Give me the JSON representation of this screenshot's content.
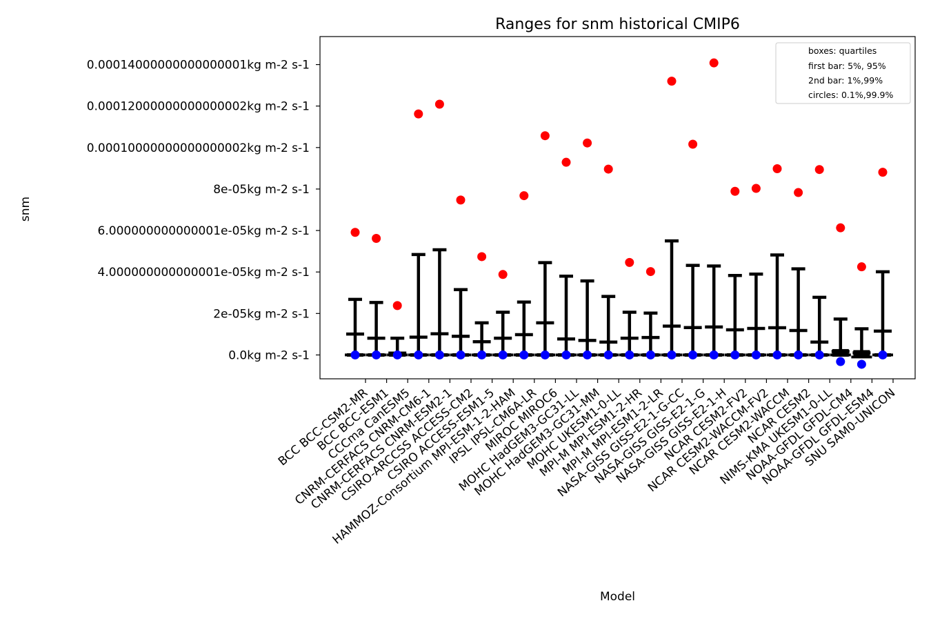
{
  "chart_data": {
    "type": "box",
    "title": "Ranges for snm historical CMIP6",
    "xlabel": "Model",
    "ylabel": "snm",
    "ylim": [
      -1.15e-05,
      0.0001535
    ],
    "y_ticks": [
      0.0,
      2e-05,
      4e-05,
      6e-05,
      8e-05,
      0.0001,
      0.00012,
      0.00014
    ],
    "y_tick_labels": [
      "0.0kg m-2 s-1",
      "2e-05kg m-2 s-1",
      "4.000000000000001e-05kg m-2 s-1",
      "6.000000000000001e-05kg m-2 s-1",
      "8e-05kg m-2 s-1",
      "0.00010000000000000002kg m-2 s-1",
      "0.00012000000000000002kg m-2 s-1",
      "0.00014000000000000001kg m-2 s-1"
    ],
    "legend": {
      "position": "top-right",
      "entries": [
        "boxes: quartiles",
        "first bar: 5%, 95%",
        "2nd bar: 1%,99%",
        "circles: 0.1%,99.9%"
      ]
    },
    "colors": {
      "high_circle": "#ff0000",
      "low_circle": "#0000ff",
      "bars": "#000000"
    },
    "categories": [
      "BCC BCC-CSM2-MR",
      "BCC BCC-ESM1",
      "CCCma CanESM5",
      "CNRM-CERFACS CNRM-CM6-1",
      "CNRM-CERFACS CNRM-ESM2-1",
      "CSIRO-ARCCSS ACCESS-CM2",
      "CSIRO ACCESS-ESM1-5",
      "HAMMOZ-Consortium MPI-ESM-1-2-HAM",
      "IPSL IPSL-CM6A-LR",
      "MIROC MIROC6",
      "MOHC HadGEM3-GC31-LL",
      "MOHC HadGEM3-GC31-MM",
      "MOHC UKESM1-0-LL",
      "MPI-M MPI-ESM1-2-HR",
      "MPI-M MPI-ESM1-2-LR",
      "NASA-GISS GISS-E2-1-G-CC",
      "NASA-GISS GISS-E2-1-G",
      "NASA-GISS GISS-E2-1-H",
      "NCAR CESM2-FV2",
      "NCAR CESM2-WACCM-FV2",
      "NCAR CESM2-WACCM",
      "NCAR CESM2",
      "NIMS-KMA UKESM1-0-LL",
      "NOAA-GFDL GFDL-CM4",
      "NOAA-GFDL GFDL-ESM4",
      "SNU SAM0-UNICON"
    ],
    "series": [
      {
        "p01": 0,
        "p1": 0,
        "p5": 0,
        "q1": 0,
        "q3": 0,
        "p95": 1.01e-05,
        "p99": 2.68e-05,
        "p999": 5.91e-05
      },
      {
        "p01": 0,
        "p1": 0,
        "p5": 0,
        "q1": 0,
        "q3": 0,
        "p95": 8.1e-06,
        "p99": 2.53e-05,
        "p999": 5.62e-05
      },
      {
        "p01": 0,
        "p1": 0,
        "p5": 0,
        "q1": 0,
        "q3": 0,
        "p95": 9e-07,
        "p99": 8.1e-06,
        "p999": 2.38e-05
      },
      {
        "p01": 0,
        "p1": 0,
        "p5": 0,
        "q1": 0,
        "q3": 0,
        "p95": 8.6e-06,
        "p99": 4.84e-05,
        "p999": 0.0001162
      },
      {
        "p01": 0,
        "p1": 0,
        "p5": 0,
        "q1": 0,
        "q3": 0,
        "p95": 1.02e-05,
        "p99": 5.07e-05,
        "p999": 0.0001209
      },
      {
        "p01": 0,
        "p1": 0,
        "p5": 0,
        "q1": 0,
        "q3": 0,
        "p95": 9e-06,
        "p99": 3.15e-05,
        "p999": 7.47e-05
      },
      {
        "p01": 0,
        "p1": 0,
        "p5": 0,
        "q1": 0,
        "q3": 0,
        "p95": 6.4e-06,
        "p99": 1.55e-05,
        "p999": 4.74e-05
      },
      {
        "p01": 0,
        "p1": 0,
        "p5": 0,
        "q1": 0,
        "q3": 0,
        "p95": 8.1e-06,
        "p99": 2.06e-05,
        "p999": 3.88e-05
      },
      {
        "p01": 0,
        "p1": 0,
        "p5": 0,
        "q1": 0,
        "q3": 0,
        "p95": 9.8e-06,
        "p99": 2.55e-05,
        "p999": 7.68e-05
      },
      {
        "p01": 0,
        "p1": 0,
        "p5": 0,
        "q1": 0,
        "q3": 0,
        "p95": 1.55e-05,
        "p99": 4.45e-05,
        "p999": 0.0001057
      },
      {
        "p01": 0,
        "p1": 0,
        "p5": 0,
        "q1": 0,
        "q3": 0,
        "p95": 7.7e-06,
        "p99": 3.8e-05,
        "p999": 9.29e-05
      },
      {
        "p01": 0,
        "p1": 0,
        "p5": 0,
        "q1": 0,
        "q3": 0,
        "p95": 7e-06,
        "p99": 3.57e-05,
        "p999": 0.0001022
      },
      {
        "p01": 0,
        "p1": 0,
        "p5": 0,
        "q1": 0,
        "q3": 0,
        "p95": 6.2e-06,
        "p99": 2.82e-05,
        "p999": 8.96e-05
      },
      {
        "p01": 0,
        "p1": 0,
        "p5": 0,
        "q1": 0,
        "q3": 0,
        "p95": 8.1e-06,
        "p99": 2.06e-05,
        "p999": 4.46e-05
      },
      {
        "p01": 0,
        "p1": 0,
        "p5": 0,
        "q1": 0,
        "q3": 0,
        "p95": 8.4e-06,
        "p99": 2.02e-05,
        "p999": 4.02e-05
      },
      {
        "p01": 0,
        "p1": 0,
        "p5": 0,
        "q1": 0,
        "q3": 0,
        "p95": 1.39e-05,
        "p99": 5.5e-05,
        "p999": 0.000132
      },
      {
        "p01": 0,
        "p1": 0,
        "p5": 0,
        "q1": 0,
        "q3": 0,
        "p95": 1.32e-05,
        "p99": 4.32e-05,
        "p999": 0.0001016
      },
      {
        "p01": 0,
        "p1": 0,
        "p5": 0,
        "q1": 0,
        "q3": 0,
        "p95": 1.35e-05,
        "p99": 4.29e-05,
        "p999": 0.0001408
      },
      {
        "p01": 0,
        "p1": 0,
        "p5": 0,
        "q1": 0,
        "q3": 0,
        "p95": 1.21e-05,
        "p99": 3.83e-05,
        "p999": 7.89e-05
      },
      {
        "p01": 0,
        "p1": 0,
        "p5": 0,
        "q1": 0,
        "q3": 0,
        "p95": 1.28e-05,
        "p99": 3.9e-05,
        "p999": 8.03e-05
      },
      {
        "p01": 0,
        "p1": 0,
        "p5": 0,
        "q1": 0,
        "q3": 0,
        "p95": 1.31e-05,
        "p99": 4.82e-05,
        "p999": 8.98e-05
      },
      {
        "p01": 0,
        "p1": 0,
        "p5": 0,
        "q1": 0,
        "q3": 0,
        "p95": 1.18e-05,
        "p99": 4.15e-05,
        "p999": 7.83e-05
      },
      {
        "p01": 0,
        "p1": 0,
        "p5": 0,
        "q1": 0,
        "q3": 0,
        "p95": 6.2e-06,
        "p99": 2.78e-05,
        "p999": 8.94e-05
      },
      {
        "p01": -3.2e-06,
        "p1": 0,
        "p5": 0,
        "q1": 0,
        "q3": 2e-06,
        "p95": 1.7e-06,
        "p99": 1.73e-05,
        "p999": 6.13e-05
      },
      {
        "p01": -4.5e-06,
        "p1": -1e-06,
        "p5": -5e-07,
        "q1": 0,
        "q3": 1.5e-06,
        "p95": 1e-06,
        "p99": 1.26e-05,
        "p999": 4.25e-05
      },
      {
        "p01": 0,
        "p1": 0,
        "p5": 0,
        "q1": 0,
        "q3": 0,
        "p95": 1.15e-05,
        "p99": 4.01e-05,
        "p999": 8.81e-05
      }
    ]
  }
}
